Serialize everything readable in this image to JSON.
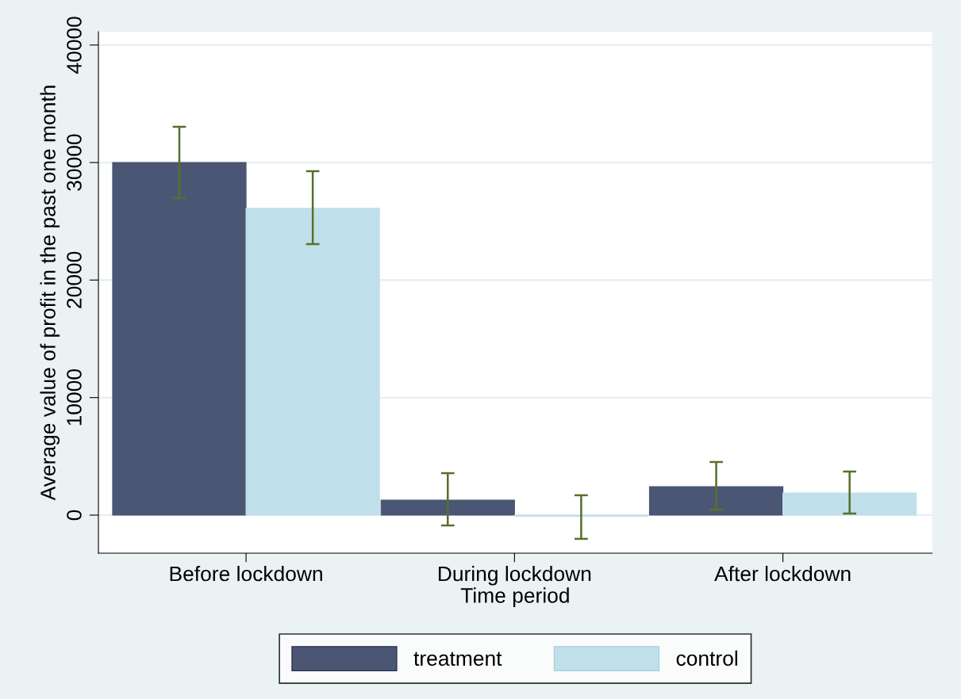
{
  "chart_data": {
    "type": "bar",
    "xlabel": "Time period",
    "ylabel": "Average value of profit in the past one month",
    "categories": [
      "Before lockdown",
      "During lockdown",
      "After lockdown"
    ],
    "series": [
      {
        "name": "treatment",
        "color": "#4b5674",
        "values": [
          30000,
          1280,
          2430
        ],
        "errors": [
          [
            26970,
            33040
          ],
          [
            -880,
            3570
          ],
          [
            470,
            4520
          ]
        ]
      },
      {
        "name": "control",
        "color": "#bfe0ea",
        "values": [
          26100,
          -100,
          1890
        ],
        "errors": [
          [
            23060,
            29270
          ],
          [
            -2020,
            1690
          ],
          [
            130,
            3710
          ]
        ]
      }
    ],
    "ylim": [
      -3240,
      41130
    ],
    "yticks": [
      0,
      10000,
      20000,
      30000,
      40000
    ],
    "grid": "y",
    "legend": "bottom"
  }
}
